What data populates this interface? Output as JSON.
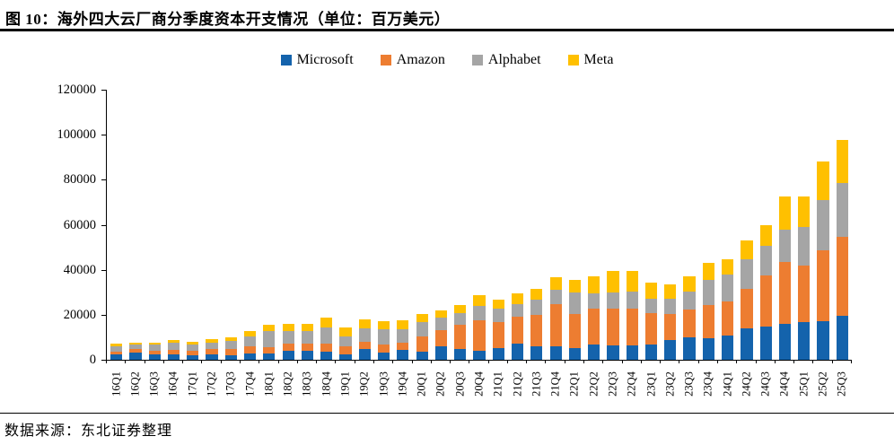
{
  "page": {
    "figure_title": "图 10：海外四大云厂商分季度资本开支情况（单位：百万美元）",
    "source": "数据来源：东北证券整理"
  },
  "chart_data": {
    "type": "bar",
    "stacked": true,
    "title": "海外四大云厂商分季度资本开支情况",
    "unit": "百万美元",
    "legend_position": "top",
    "grid": false,
    "ylim": [
      0,
      120000
    ],
    "ytick_step": 20000,
    "yticks": [
      0,
      20000,
      40000,
      60000,
      80000,
      100000,
      120000
    ],
    "categories": [
      "16Q1",
      "16Q2",
      "16Q3",
      "16Q4",
      "17Q1",
      "17Q2",
      "17Q3",
      "17Q4",
      "18Q1",
      "18Q2",
      "18Q3",
      "18Q4",
      "19Q1",
      "19Q2",
      "19Q3",
      "19Q4",
      "20Q1",
      "20Q2",
      "20Q3",
      "20Q4",
      "21Q1",
      "21Q2",
      "21Q3",
      "21Q4",
      "22Q1",
      "22Q2",
      "22Q3",
      "22Q4",
      "23Q1",
      "23Q2",
      "23Q3",
      "23Q4",
      "24Q1",
      "24Q2",
      "24Q3",
      "24Q4",
      "25Q1",
      "25Q2",
      "25Q3"
    ],
    "series": [
      {
        "name": "Microsoft",
        "color": "#1463AC",
        "values": [
          2308,
          3115,
          2279,
          2481,
          2087,
          2288,
          2132,
          2917,
          2939,
          3982,
          3985,
          3650,
          2567,
          4800,
          3385,
          4543,
          3767,
          5822,
          4907,
          4100,
          5097,
          7202,
          5810,
          5865,
          5340,
          6871,
          6283,
          6274,
          6607,
          8943,
          9917,
          9735,
          10952,
          13873,
          14923,
          15804,
          16745,
          17079,
          19400
        ]
      },
      {
        "name": "Amazon",
        "color": "#ED7D31",
        "values": [
          1370,
          1550,
          1771,
          2005,
          2097,
          2512,
          2672,
          3100,
          2655,
          3199,
          3352,
          3730,
          3287,
          3107,
          3385,
          2910,
          6795,
          7459,
          10507,
          13500,
          11500,
          12078,
          14285,
          19000,
          14951,
          15724,
          16378,
          16592,
          14207,
          11455,
          12479,
          14588,
          14925,
          17620,
          22620,
          27834,
          25019,
          31400,
          35300
        ]
      },
      {
        "name": "Alphabet",
        "color": "#A5A5A5",
        "values": [
          2380,
          2123,
          2570,
          3080,
          2506,
          2797,
          3541,
          4300,
          7298,
          5477,
          5282,
          7080,
          4636,
          6125,
          6732,
          6052,
          6005,
          5391,
          5406,
          6200,
          5942,
          5496,
          6819,
          6383,
          9786,
          6828,
          7276,
          7595,
          6289,
          6888,
          8055,
          11019,
          12012,
          13186,
          13061,
          14276,
          17197,
          22446,
          23700
        ]
      },
      {
        "name": "Meta",
        "color": "#FFC000",
        "values": [
          1134,
          995,
          1095,
          1270,
          1271,
          1440,
          1755,
          2263,
          2812,
          3459,
          3337,
          4366,
          3837,
          3830,
          3754,
          4131,
          3807,
          3405,
          3679,
          4800,
          4276,
          4734,
          4551,
          5370,
          5549,
          7573,
          9519,
          9041,
          7113,
          6354,
          6763,
          7853,
          6721,
          8473,
          9210,
          14840,
          13690,
          17010,
          19370
        ]
      }
    ]
  }
}
